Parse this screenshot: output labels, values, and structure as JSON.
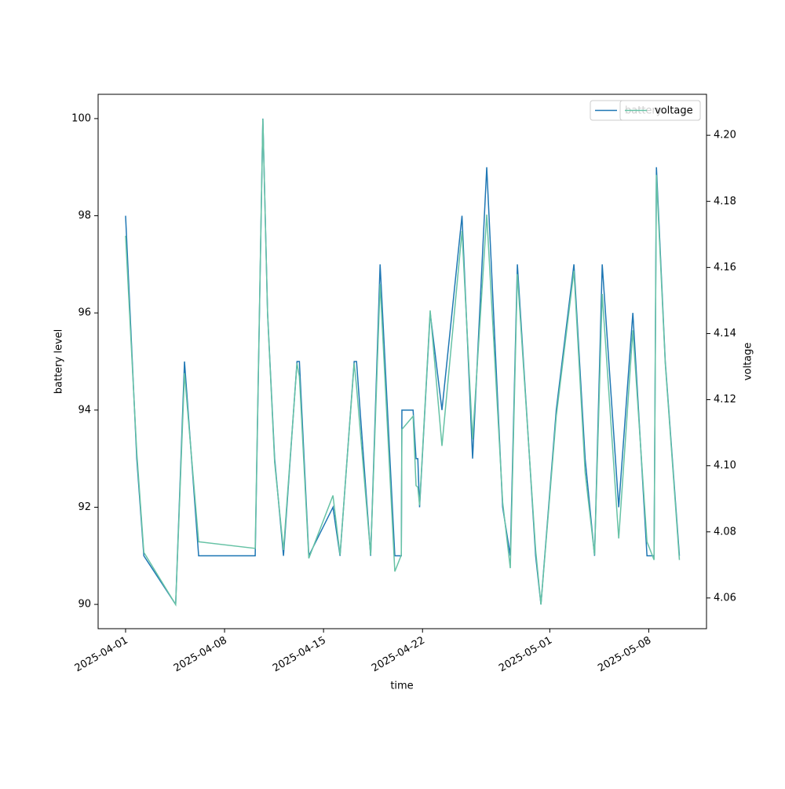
{
  "chart_data": {
    "type": "line",
    "x_label": "time",
    "y_label": "battery level",
    "y2_label": "voltage",
    "x": [
      "2025-04-01T00:00",
      "2025-04-01T19:00",
      "2025-04-02T07:00",
      "2025-04-04T13:00",
      "2025-04-05T04:00",
      "2025-04-06T04:00",
      "2025-04-10T04:00",
      "2025-04-10T17:00",
      "2025-04-11T01:00",
      "2025-04-11T13:00",
      "2025-04-12T04:00",
      "2025-04-13T03:00",
      "2025-04-13T07:00",
      "2025-04-13T23:00",
      "2025-04-15T16:00",
      "2025-04-16T04:00",
      "2025-04-17T04:00",
      "2025-04-17T08:00",
      "2025-04-18T08:00",
      "2025-04-19T00:00",
      "2025-04-20T01:00",
      "2025-04-20T12:00",
      "2025-04-20T13:00",
      "2025-04-21T08:00",
      "2025-04-21T13:00",
      "2025-04-21T16:00",
      "2025-04-21T19:00",
      "2025-04-22T13:00",
      "2025-04-23T09:00",
      "2025-04-24T19:00",
      "2025-04-25T13:00",
      "2025-04-26T13:00",
      "2025-04-27T16:00",
      "2025-04-28T05:00",
      "2025-04-28T17:00",
      "2025-04-30T00:00",
      "2025-04-30T09:00",
      "2025-05-01T11:00",
      "2025-05-02T17:00",
      "2025-05-03T12:00",
      "2025-05-04T04:00",
      "2025-05-04T17:00",
      "2025-05-05T21:00",
      "2025-05-06T21:00",
      "2025-05-07T21:00",
      "2025-05-08T09:00",
      "2025-05-08T13:00",
      "2025-05-09T04:00",
      "2025-05-10T04:00"
    ],
    "series": [
      {
        "name": "battery",
        "color": "#1f77b4",
        "axis": "y",
        "values": [
          98,
          93,
          91,
          90,
          95,
          91,
          91,
          100,
          96,
          93,
          91,
          95,
          95,
          91,
          92,
          91,
          95,
          95,
          91,
          97,
          91,
          91,
          94,
          94,
          93,
          93,
          92,
          96,
          94,
          98,
          93,
          99,
          92,
          91,
          97,
          91,
          90,
          94,
          97,
          93,
          91,
          97,
          92,
          96,
          91,
          91,
          99,
          95,
          91
        ]
      },
      {
        "name": "voltage",
        "color": "#66c2a5",
        "axis": "y2",
        "values": [
          4.1696,
          4.104,
          4.0738,
          4.058,
          4.128,
          4.077,
          4.075,
          4.205,
          4.146,
          4.101,
          4.0745,
          4.131,
          4.127,
          4.072,
          4.091,
          4.073,
          4.131,
          4.124,
          4.073,
          4.155,
          4.068,
          4.073,
          4.111,
          4.115,
          4.094,
          4.0935,
          4.088,
          4.147,
          4.106,
          4.171,
          4.108,
          4.176,
          4.089,
          4.069,
          4.158,
          4.0745,
          4.058,
          4.115,
          4.159,
          4.098,
          4.073,
          4.152,
          4.078,
          4.141,
          4.077,
          4.0715,
          4.188,
          4.131,
          4.0715
        ]
      }
    ],
    "xlim": [
      "2025-03-30T01:24",
      "2025-05-12T02:00"
    ],
    "xticks": [
      "2025-04-01",
      "2025-04-08",
      "2025-04-15",
      "2025-04-22",
      "2025-05-01",
      "2025-05-08"
    ],
    "ylim": [
      89.5,
      100.5
    ],
    "yticks": [
      90,
      92,
      94,
      96,
      98,
      100
    ],
    "y2lim": [
      4.0507,
      4.2124
    ],
    "y2ticks": [
      4.06,
      4.08,
      {
        "value": 4.1,
        "label": "4.10"
      },
      4.12,
      4.14,
      4.16,
      4.18,
      {
        "value": 4.2,
        "label": "4.20"
      }
    ],
    "legend": "upper right",
    "grid": false
  }
}
